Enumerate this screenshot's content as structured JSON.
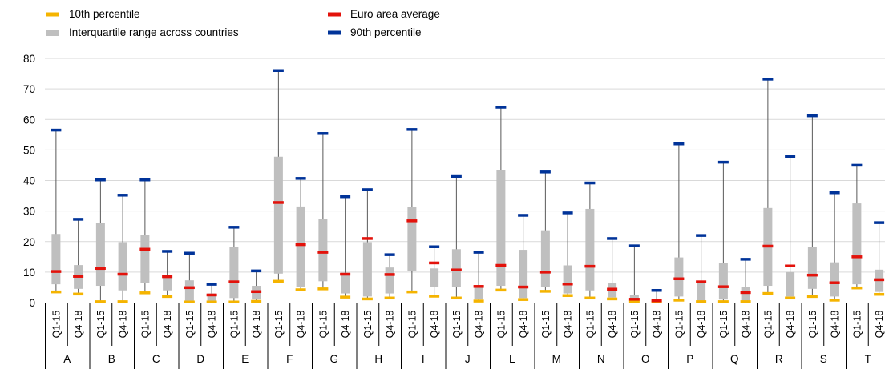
{
  "chart_data": {
    "type": "boxplot",
    "legend": [
      {
        "key": "p10",
        "label": "10th percentile",
        "color": "#f5b400"
      },
      {
        "key": "iqr",
        "label": "Interquartile range across countries",
        "color": "#bfbfbf"
      },
      {
        "key": "mean",
        "label": "Euro area average",
        "color": "#e3120b"
      },
      {
        "key": "p90",
        "label": "90th percentile",
        "color": "#003399"
      }
    ],
    "ylim": [
      0,
      80
    ],
    "yticks": [
      0,
      10,
      20,
      30,
      40,
      50,
      60,
      70,
      80
    ],
    "periods": [
      "Q1-15",
      "Q4-18"
    ],
    "groups": [
      {
        "label": "A",
        "data": [
          {
            "p10": 3.5,
            "q1": 6,
            "q3": 22.5,
            "mean": 10.2,
            "p90": 56.5
          },
          {
            "p10": 2.8,
            "q1": 4.5,
            "q3": 12.3,
            "mean": 8.6,
            "p90": 27.3
          }
        ]
      },
      {
        "label": "B",
        "data": [
          {
            "p10": 0.3,
            "q1": 5.5,
            "q3": 26,
            "mean": 11.2,
            "p90": 40.2
          },
          {
            "p10": 0.3,
            "q1": 4,
            "q3": 19.8,
            "mean": 9.3,
            "p90": 35.2
          }
        ]
      },
      {
        "label": "C",
        "data": [
          {
            "p10": 3.2,
            "q1": 6.5,
            "q3": 22.2,
            "mean": 17.5,
            "p90": 40.2
          },
          {
            "p10": 2,
            "q1": 4,
            "q3": 8.8,
            "mean": 8.5,
            "p90": 16.8
          }
        ]
      },
      {
        "label": "D",
        "data": [
          {
            "p10": 0.2,
            "q1": 0.5,
            "q3": 7.3,
            "mean": 4.9,
            "p90": 16.2
          },
          {
            "p10": 0.2,
            "q1": 0.3,
            "q3": 3,
            "mean": 2.5,
            "p90": 6
          }
        ]
      },
      {
        "label": "E",
        "data": [
          {
            "p10": 0.2,
            "q1": 1.5,
            "q3": 18.2,
            "mean": 6.8,
            "p90": 24.7
          },
          {
            "p10": 0.4,
            "q1": 1,
            "q3": 5.5,
            "mean": 3.6,
            "p90": 10.4
          }
        ]
      },
      {
        "label": "F",
        "data": [
          {
            "p10": 7,
            "q1": 9.5,
            "q3": 47.8,
            "mean": 32.8,
            "p90": 76
          },
          {
            "p10": 4.2,
            "q1": 5,
            "q3": 31.5,
            "mean": 19,
            "p90": 40.7
          }
        ]
      },
      {
        "label": "G",
        "data": [
          {
            "p10": 4.5,
            "q1": 7,
            "q3": 27.3,
            "mean": 16.5,
            "p90": 55.4
          },
          {
            "p10": 1.8,
            "q1": 3,
            "q3": 9.8,
            "mean": 9.3,
            "p90": 34.7
          }
        ]
      },
      {
        "label": "H",
        "data": [
          {
            "p10": 1.2,
            "q1": 2,
            "q3": 19.8,
            "mean": 21,
            "p90": 37
          },
          {
            "p10": 1.5,
            "q1": 3,
            "q3": 11.5,
            "mean": 9.2,
            "p90": 15.7
          }
        ]
      },
      {
        "label": "I",
        "data": [
          {
            "p10": 3.5,
            "q1": 10.5,
            "q3": 31.3,
            "mean": 26.8,
            "p90": 56.7
          },
          {
            "p10": 2.1,
            "q1": 5,
            "q3": 11.2,
            "mean": 13,
            "p90": 18.3
          }
        ]
      },
      {
        "label": "J",
        "data": [
          {
            "p10": 1.5,
            "q1": 5,
            "q3": 17.5,
            "mean": 10.7,
            "p90": 41.3
          },
          {
            "p10": 0.5,
            "q1": 1,
            "q3": 5.3,
            "mean": 5.3,
            "p90": 16.5
          }
        ]
      },
      {
        "label": "L",
        "data": [
          {
            "p10": 4.1,
            "q1": 5.5,
            "q3": 43.5,
            "mean": 12.2,
            "p90": 64
          },
          {
            "p10": 1,
            "q1": 1.5,
            "q3": 17.3,
            "mean": 5.1,
            "p90": 28.6
          }
        ]
      },
      {
        "label": "M",
        "data": [
          {
            "p10": 3.7,
            "q1": 5,
            "q3": 23.7,
            "mean": 10,
            "p90": 42.8
          },
          {
            "p10": 2.3,
            "q1": 3,
            "q3": 12.2,
            "mean": 6.1,
            "p90": 29.4
          }
        ]
      },
      {
        "label": "N",
        "data": [
          {
            "p10": 1.5,
            "q1": 4,
            "q3": 30.7,
            "mean": 11.9,
            "p90": 39.2
          },
          {
            "p10": 1.2,
            "q1": 1.7,
            "q3": 6.5,
            "mean": 4.4,
            "p90": 21
          }
        ]
      },
      {
        "label": "O",
        "data": [
          {
            "p10": 0.3,
            "q1": 0.4,
            "q3": 2.5,
            "mean": 1.1,
            "p90": 18.6
          },
          {
            "p10": 0.2,
            "q1": 0.2,
            "q3": 1,
            "mean": 0.6,
            "p90": 4
          }
        ]
      },
      {
        "label": "P",
        "data": [
          {
            "p10": 0.8,
            "q1": 2,
            "q3": 14.8,
            "mean": 7.8,
            "p90": 52
          },
          {
            "p10": 0.3,
            "q1": 0.5,
            "q3": 6.8,
            "mean": 6.8,
            "p90": 22
          }
        ]
      },
      {
        "label": "Q",
        "data": [
          {
            "p10": 0.3,
            "q1": 1,
            "q3": 13,
            "mean": 5.2,
            "p90": 46
          },
          {
            "p10": 0.3,
            "q1": 0.5,
            "q3": 5.2,
            "mean": 3.3,
            "p90": 14.2
          }
        ]
      },
      {
        "label": "R",
        "data": [
          {
            "p10": 3,
            "q1": 5.5,
            "q3": 31,
            "mean": 18.5,
            "p90": 73.2
          },
          {
            "p10": 1.5,
            "q1": 2,
            "q3": 10,
            "mean": 12,
            "p90": 47.8
          }
        ]
      },
      {
        "label": "S",
        "data": [
          {
            "p10": 2,
            "q1": 4.5,
            "q3": 18.2,
            "mean": 9,
            "p90": 61.2
          },
          {
            "p10": 0.8,
            "q1": 2,
            "q3": 13.2,
            "mean": 6.5,
            "p90": 36
          }
        ]
      },
      {
        "label": "T",
        "data": [
          {
            "p10": 4.8,
            "q1": 6,
            "q3": 32.5,
            "mean": 15,
            "p90": 45
          },
          {
            "p10": 2.7,
            "q1": 3.5,
            "q3": 10.8,
            "mean": 7.5,
            "p90": 26.2
          }
        ]
      }
    ]
  }
}
